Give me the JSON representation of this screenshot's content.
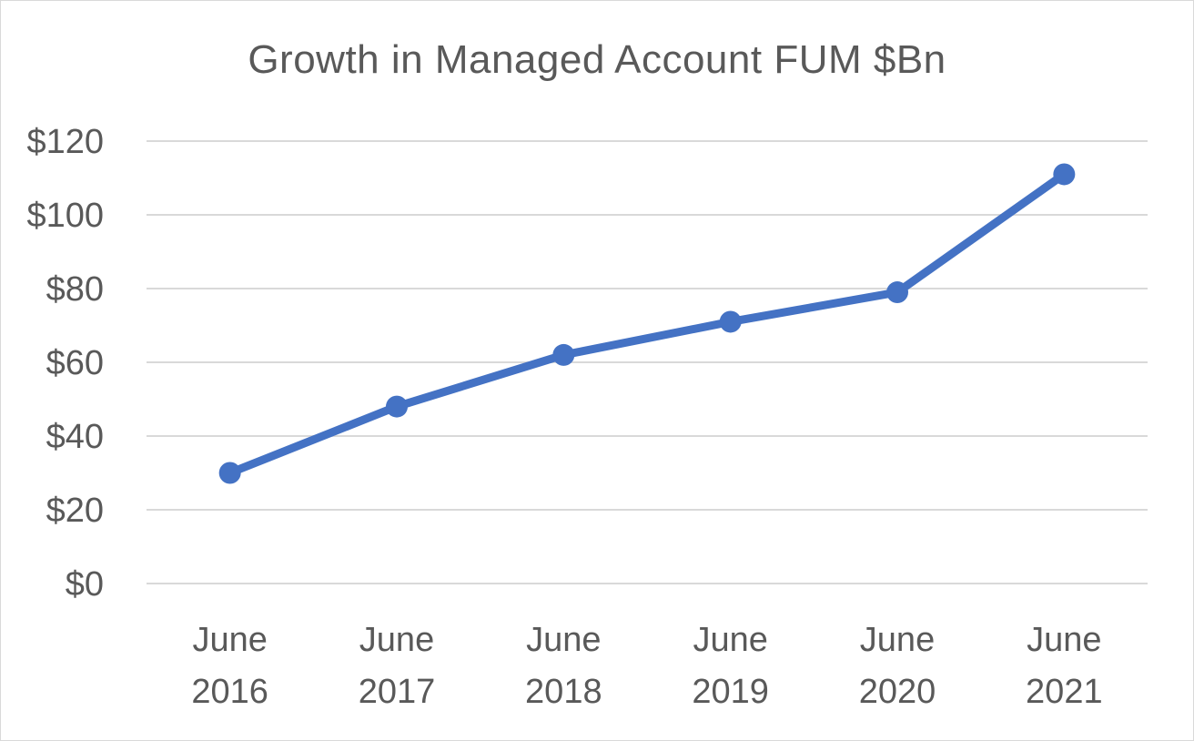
{
  "chart_data": {
    "type": "line",
    "title": "Growth in Managed Account FUM $Bn",
    "categories": [
      [
        "June",
        "2016"
      ],
      [
        "June",
        "2017"
      ],
      [
        "June",
        "2018"
      ],
      [
        "June",
        "2019"
      ],
      [
        "June",
        "2020"
      ],
      [
        "June",
        "2021"
      ]
    ],
    "series": [
      {
        "values": [
          30,
          48,
          62,
          71,
          79,
          111
        ],
        "color": "#4472c4"
      }
    ],
    "y_ticks": [
      "$0",
      "$20",
      "$40",
      "$60",
      "$80",
      "$100",
      "$120"
    ],
    "ylim": [
      0,
      120
    ],
    "grid": true,
    "legend": "none",
    "xlabel": "",
    "ylabel": ""
  }
}
